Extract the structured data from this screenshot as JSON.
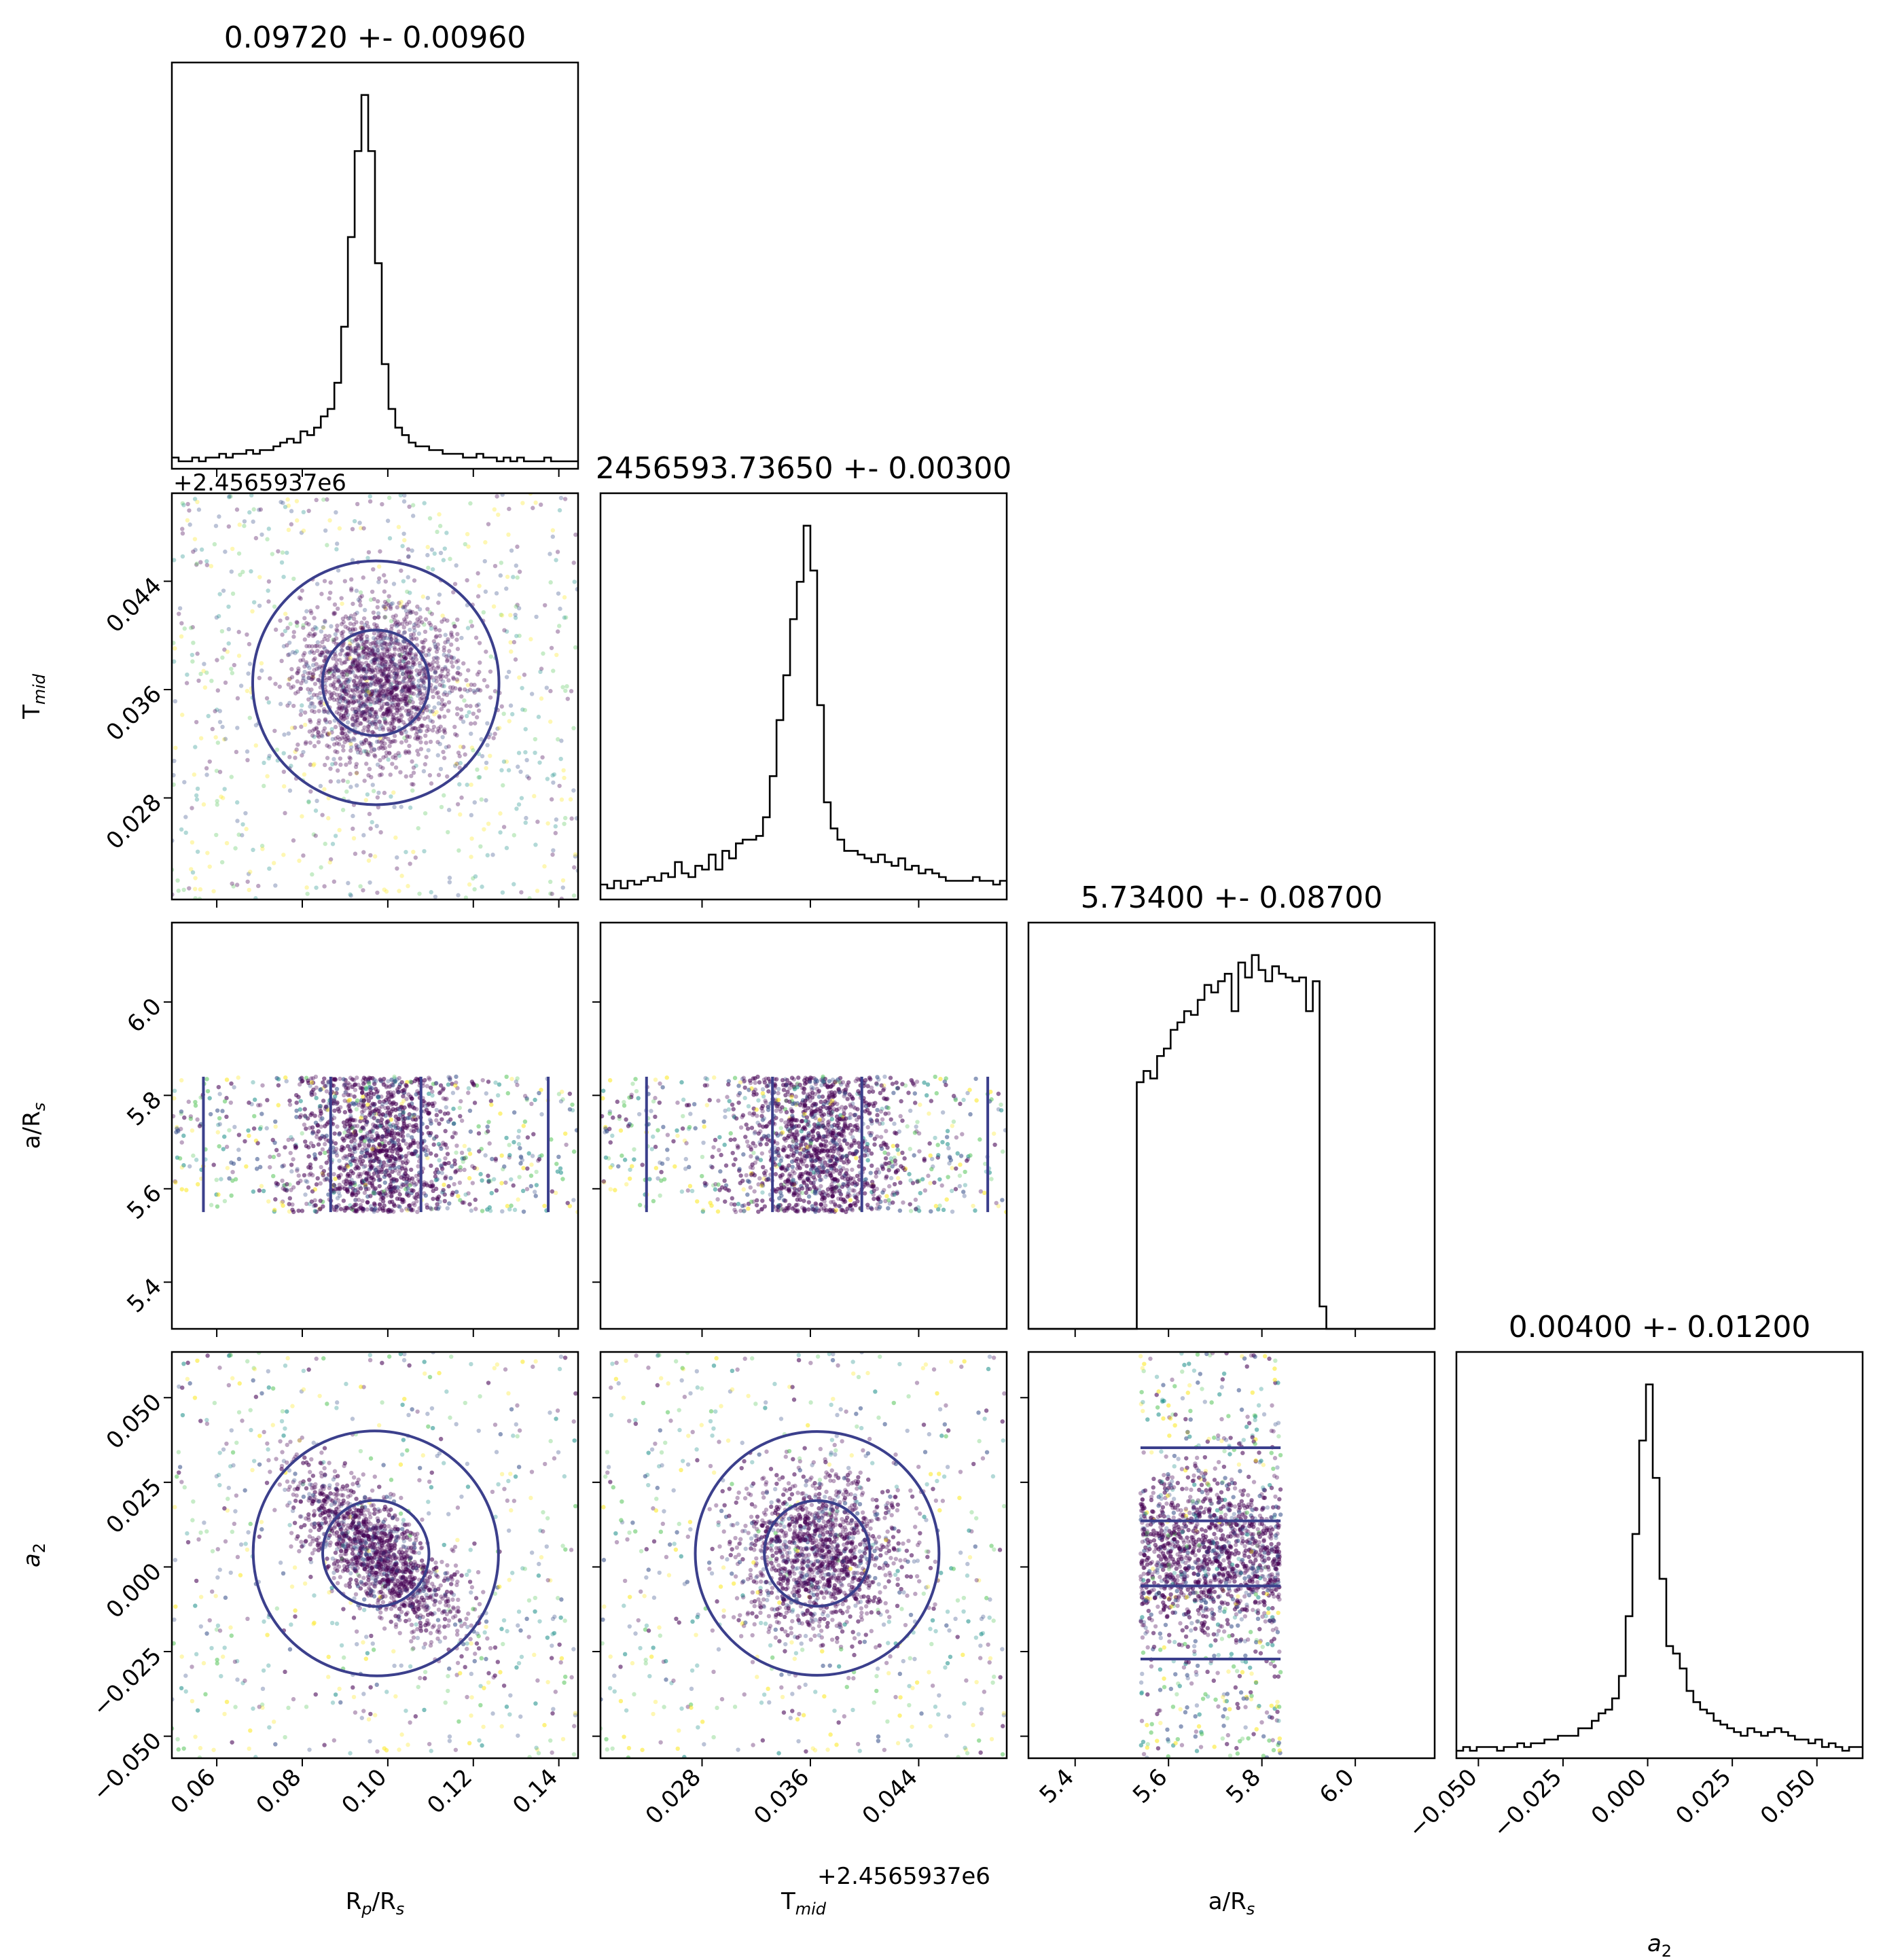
{
  "chart_data": {
    "type": "corner",
    "parameters": [
      {
        "key": "rp",
        "label_main": "R",
        "label_sub1": "p",
        "label_mid": "/R",
        "label_sub2": "s",
        "median": 0.0972,
        "sigma": 0.0096,
        "title": "0.09720 +- 0.00960",
        "range": [
          0.0495,
          0.1445
        ],
        "ticks": [
          0.06,
          0.08,
          0.1,
          0.12,
          0.14
        ],
        "tick_labels": [
          "0.06",
          "0.08",
          "0.10",
          "0.12",
          "0.14"
        ],
        "offset": ""
      },
      {
        "key": "tmid",
        "label_main": "T",
        "label_sub1": "mid",
        "label_mid": "",
        "label_sub2": "",
        "median": 0.0365,
        "sigma": 0.003,
        "title": "2456593.73650 +- 0.00300",
        "range": [
          0.0205,
          0.0505
        ],
        "ticks": [
          0.028,
          0.036,
          0.044
        ],
        "tick_labels": [
          "0.028",
          "0.036",
          "0.044"
        ],
        "offset": "+2.4565937e6"
      },
      {
        "key": "ars",
        "label_main": "a",
        "label_sub1": "",
        "label_mid": "/R",
        "label_sub2": "s",
        "median": 5.734,
        "sigma": 0.087,
        "title": "5.73400 +- 0.08700",
        "range": [
          5.3,
          6.17
        ],
        "ticks": [
          5.4,
          5.6,
          5.8,
          6.0
        ],
        "tick_labels": [
          "5.4",
          "5.6",
          "5.8",
          "6.0"
        ],
        "offset": ""
      },
      {
        "key": "a2",
        "label_main": "a",
        "label_sub1": "2",
        "label_mid": "",
        "label_sub2": "",
        "italic": true,
        "median": 0.004,
        "sigma": 0.012,
        "title": "0.00400 +- 0.01200",
        "range": [
          -0.0565,
          0.0635
        ],
        "ticks": [
          -0.05,
          -0.025,
          0.0,
          0.025,
          0.05
        ],
        "tick_labels": [
          "−0.050",
          "−0.025",
          "0.000",
          "0.025",
          "0.050"
        ],
        "offset": ""
      }
    ],
    "histograms": {
      "rp": [
        3,
        2,
        2,
        3,
        2,
        3,
        3,
        4,
        3,
        4,
        4,
        5,
        4,
        5,
        5,
        6,
        7,
        8,
        7,
        10,
        9,
        11,
        14,
        16,
        23,
        38,
        62,
        85,
        100,
        85,
        55,
        28,
        16,
        11,
        9,
        7,
        6,
        6,
        5,
        5,
        4,
        4,
        4,
        3,
        3,
        4,
        3,
        3,
        2,
        3,
        2,
        3,
        2,
        2,
        2,
        3,
        2,
        2,
        2,
        2
      ],
      "tmid": [
        4,
        3,
        5,
        3,
        5,
        4,
        5,
        6,
        5,
        7,
        6,
        10,
        7,
        6,
        9,
        8,
        12,
        8,
        13,
        11,
        15,
        16,
        16,
        17,
        22,
        33,
        48,
        60,
        75,
        85,
        100,
        88,
        52,
        26,
        19,
        16,
        13,
        13,
        12,
        11,
        10,
        12,
        10,
        9,
        11,
        8,
        9,
        7,
        8,
        7,
        6,
        5,
        5,
        5,
        5,
        6,
        5,
        5,
        4,
        5
      ],
      "ars": [
        0,
        0,
        0,
        0,
        0,
        0,
        0,
        0,
        0,
        0,
        0,
        0,
        0,
        0,
        0,
        0,
        0,
        0,
        0,
        0,
        0,
        0,
        0,
        0,
        0,
        0,
        0,
        0,
        0,
        0,
        0,
        0,
        0,
        0,
        0,
        0,
        0,
        0,
        0,
        0,
        0,
        0,
        0,
        0,
        0,
        0,
        0,
        0,
        0,
        0,
        0,
        0,
        0,
        0,
        0,
        0,
        0,
        0,
        0,
        0
      ],
      "a2": [
        2,
        3,
        2,
        3,
        3,
        3,
        2,
        3,
        3,
        4,
        3,
        4,
        4,
        5,
        5,
        6,
        6,
        6,
        8,
        8,
        10,
        12,
        13,
        16,
        22,
        38,
        60,
        85,
        100,
        75,
        48,
        30,
        28,
        24,
        18,
        15,
        13,
        12,
        10,
        9,
        8,
        7,
        6,
        8,
        7,
        6,
        7,
        8,
        7,
        6,
        5,
        5,
        4,
        5,
        3,
        4,
        3,
        2,
        3,
        3
      ]
    },
    "ars_histogram": {
      "edges_start": 5.3,
      "bin_width": 0.0145,
      "values": [
        0,
        0,
        0,
        0,
        0,
        0,
        0,
        0,
        0,
        0,
        0,
        0,
        0,
        0,
        0,
        0,
        66,
        69,
        67,
        73,
        75,
        80,
        82,
        85,
        84,
        88,
        92,
        90,
        93,
        95,
        85,
        98,
        94,
        100,
        96,
        93,
        97,
        95,
        94,
        93,
        94,
        85,
        93,
        6,
        0,
        0,
        0,
        0,
        0,
        0,
        0,
        0,
        0,
        0,
        0,
        0,
        0,
        0,
        0,
        0
      ]
    },
    "contour_color": "#3b3f8c",
    "outer_contour_color": "#fde725",
    "scatter_colors": [
      "#440154",
      "#3b528b",
      "#21918c",
      "#5ec962",
      "#fde725"
    ]
  }
}
